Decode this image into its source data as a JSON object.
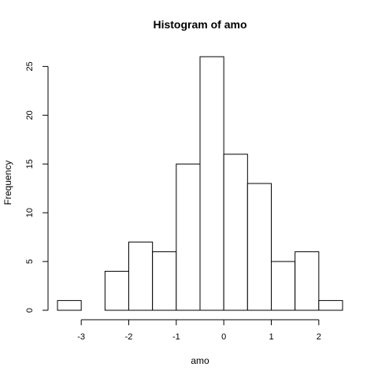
{
  "chart_data": {
    "type": "bar",
    "title": "Histogram of amo",
    "xlabel": "amo",
    "ylabel": "Frequency",
    "bins": [
      {
        "from": -3.5,
        "to": -3.0,
        "count": 1
      },
      {
        "from": -3.0,
        "to": -2.5,
        "count": 0
      },
      {
        "from": -2.5,
        "to": -2.0,
        "count": 4
      },
      {
        "from": -2.0,
        "to": -1.5,
        "count": 7
      },
      {
        "from": -1.5,
        "to": -1.0,
        "count": 6
      },
      {
        "from": -1.0,
        "to": -0.5,
        "count": 15
      },
      {
        "from": -0.5,
        "to": 0.0,
        "count": 26
      },
      {
        "from": 0.0,
        "to": 0.5,
        "count": 16
      },
      {
        "from": 0.5,
        "to": 1.0,
        "count": 13
      },
      {
        "from": 1.0,
        "to": 1.5,
        "count": 5
      },
      {
        "from": 1.5,
        "to": 2.0,
        "count": 6
      },
      {
        "from": 2.0,
        "to": 2.5,
        "count": 1
      }
    ],
    "xlim": [
      -3.5,
      2.5
    ],
    "ylim": [
      0,
      26
    ],
    "x_ticks": [
      -3,
      -2,
      -1,
      0,
      1,
      2
    ],
    "x_tick_labels": [
      "-3",
      "-2",
      "-1",
      "0",
      "1",
      "2"
    ],
    "y_ticks": [
      0,
      5,
      10,
      15,
      20,
      25
    ],
    "y_tick_labels": [
      "0",
      "5",
      "10",
      "15",
      "20",
      "25"
    ],
    "grid": false,
    "bar_fill": "#ffffff",
    "bar_stroke": "#000000"
  }
}
